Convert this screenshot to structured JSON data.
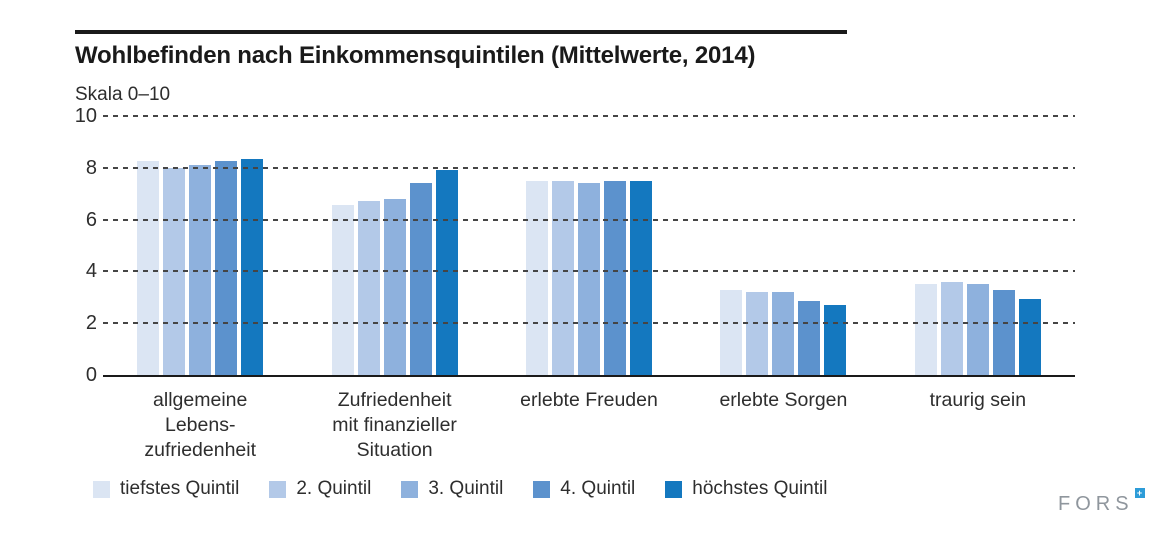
{
  "header": {
    "title": "Wohlbefinden nach Einkommensquintilen (Mittelwerte, 2014)",
    "subtitle": "Skala 0–10"
  },
  "chart_data": {
    "type": "bar",
    "title": "Wohlbefinden nach Einkommensquintilen (Mittelwerte, 2014)",
    "ylabel": "Skala 0–10",
    "xlabel": "",
    "ylim": [
      0,
      10
    ],
    "yticks": [
      0,
      2,
      4,
      6,
      8,
      10
    ],
    "grid": "horizontal-dashed",
    "legend_position": "bottom",
    "categories": [
      "allgemeine Lebens- zufriedenheit",
      "Zufriedenheit mit finanzieller Situation",
      "erlebte Freuden",
      "erlebte Sorgen",
      "traurig sein"
    ],
    "category_lines": [
      [
        "allgemeine",
        "Lebens-",
        "zufriedenheit"
      ],
      [
        "Zufriedenheit",
        "mit finanzieller",
        "Situation"
      ],
      [
        "erlebte Freuden"
      ],
      [
        "erlebte Sorgen"
      ],
      [
        "traurig sein"
      ]
    ],
    "series": [
      {
        "name": "tiefstes Quintil",
        "color": "#dbe5f3",
        "values": [
          8.25,
          6.55,
          7.5,
          3.3,
          3.5
        ]
      },
      {
        "name": "2. Quintil",
        "color": "#b3c9e8",
        "values": [
          8.0,
          6.7,
          7.5,
          3.2,
          3.6
        ]
      },
      {
        "name": "3. Quintil",
        "color": "#8eb1dd",
        "values": [
          8.1,
          6.8,
          7.4,
          3.2,
          3.5
        ]
      },
      {
        "name": "4. Quintil",
        "color": "#5c92cd",
        "values": [
          8.25,
          7.4,
          7.5,
          2.85,
          3.3
        ]
      },
      {
        "name": "höchstes Quintil",
        "color": "#1478bf",
        "values": [
          8.35,
          7.9,
          7.5,
          2.7,
          2.95
        ]
      }
    ]
  },
  "footer": {
    "logo_text": "FORS",
    "logo_mark": "+",
    "logo_mark_color": "#2d9cd8"
  }
}
